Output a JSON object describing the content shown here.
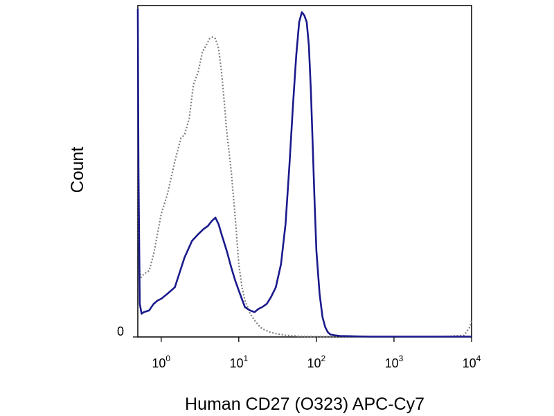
{
  "chart_data": {
    "type": "area",
    "title": "",
    "xlabel": "Human CD27 (O323) APC-Cy7",
    "ylabel": "Count",
    "x_scale": "log",
    "xlim": [
      0.5,
      10000
    ],
    "ylim": [
      0,
      100
    ],
    "grid": false,
    "x_ticks": [
      {
        "value": 1,
        "base": "10",
        "exp": "0"
      },
      {
        "value": 10,
        "base": "10",
        "exp": "1"
      },
      {
        "value": 100,
        "base": "10",
        "exp": "2"
      },
      {
        "value": 1000,
        "base": "10",
        "exp": "3"
      },
      {
        "value": 10000,
        "base": "10",
        "exp": "4"
      }
    ],
    "y_ticks": [
      {
        "value": 0,
        "label": "0"
      }
    ],
    "series": [
      {
        "color": "#7f7f7f",
        "line_style": "dotted",
        "x": [
          0.5,
          0.51,
          0.53,
          0.55,
          0.6,
          0.7,
          0.8,
          1.0,
          1.2,
          1.5,
          1.8,
          2.0,
          2.3,
          2.6,
          3.0,
          3.4,
          3.8,
          4.2,
          4.6,
          5.0,
          5.5,
          6.0,
          6.5,
          7.0,
          8.0,
          9.0,
          10,
          11,
          12,
          13,
          14,
          16,
          18,
          20,
          25,
          30,
          40,
          60,
          100,
          200,
          500,
          1000,
          3000,
          5000,
          8000,
          9500,
          10000
        ],
        "y": [
          98,
          30,
          20,
          18,
          19,
          20,
          25,
          37,
          43,
          53,
          60,
          61,
          66,
          76,
          80,
          86,
          88,
          90,
          90.5,
          90,
          87,
          80,
          71,
          62,
          50,
          36,
          22,
          15,
          11,
          9,
          7,
          5,
          3.5,
          2.5,
          1.5,
          1.0,
          0.5,
          0.2,
          0.1,
          0.1,
          0.1,
          0.1,
          0.1,
          0.2,
          0.5,
          3,
          5
        ]
      },
      {
        "color": "#1a1a8c",
        "line_style": "solid",
        "x": [
          0.5,
          0.51,
          0.53,
          0.56,
          0.6,
          0.7,
          0.8,
          0.9,
          1.0,
          1.2,
          1.5,
          2.0,
          2.5,
          3.0,
          3.5,
          4.0,
          4.5,
          5.0,
          5.5,
          6.0,
          7.0,
          8.0,
          9.0,
          10,
          12,
          14,
          16,
          18,
          20,
          23,
          26,
          30,
          35,
          40,
          45,
          50,
          55,
          60,
          65,
          70,
          75,
          80,
          85,
          90,
          95,
          100,
          110,
          120,
          130,
          140,
          150,
          170,
          200,
          300,
          500,
          1000,
          3000,
          10000
        ],
        "y": [
          99,
          50,
          10,
          7,
          7.5,
          8,
          10,
          11,
          11.5,
          13,
          15,
          24,
          29,
          31,
          32.5,
          33.5,
          35,
          36,
          34,
          31,
          26,
          21,
          17,
          14,
          9,
          8,
          7.5,
          8.5,
          9,
          10,
          12,
          15,
          22,
          34,
          52,
          70,
          85,
          95,
          98,
          97,
          95,
          88,
          74,
          57,
          40,
          26,
          13,
          6,
          3,
          1.5,
          0.8,
          0.5,
          0.3,
          0.2,
          0.1,
          0.1,
          0.1,
          0.1
        ]
      }
    ]
  }
}
